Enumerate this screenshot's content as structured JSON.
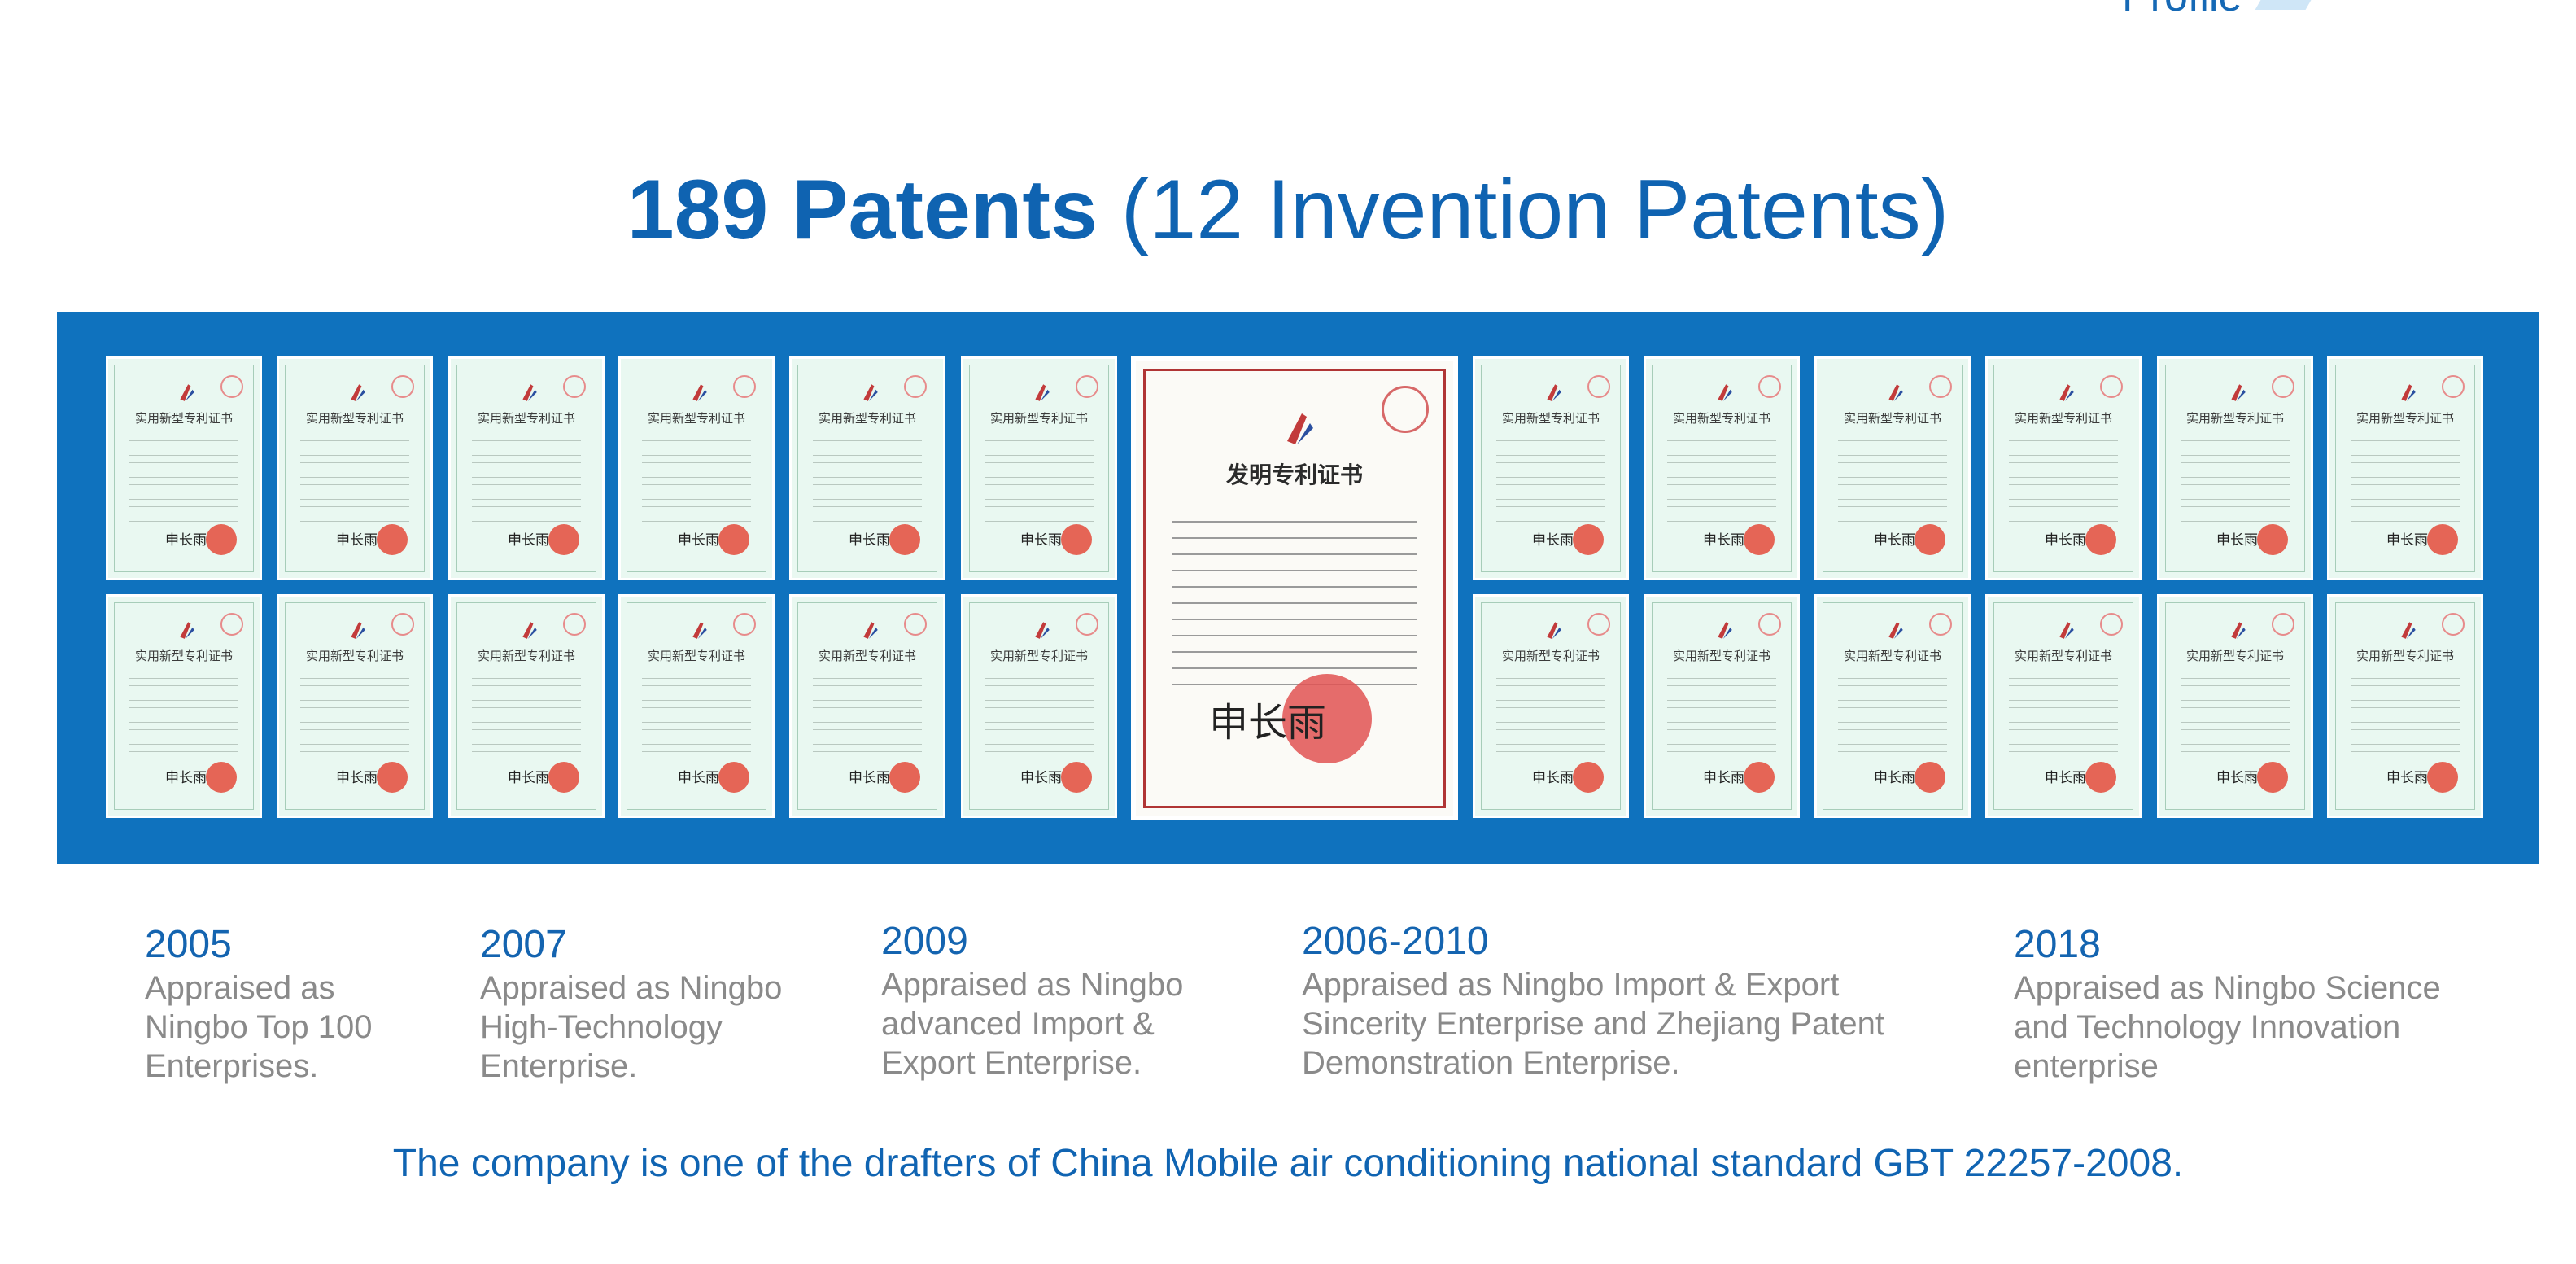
{
  "corner": {
    "text": "Profile"
  },
  "title": {
    "bold": "189 Patents",
    "normal": " (12 Invention Patents)"
  },
  "certificates": {
    "small_header": "实用新型专利证书",
    "small_sign": "申长雨",
    "big_header": "发明专利证书",
    "big_sign": "申长雨"
  },
  "milestones": [
    {
      "year": "2005",
      "lines": [
        "Appraised as",
        "Ningbo Top 100",
        "Enterprises."
      ]
    },
    {
      "year": "2007",
      "lines": [
        "Appraised as Ningbo",
        "High-Technology",
        "Enterprise."
      ]
    },
    {
      "year": "2009",
      "lines": [
        "Appraised as Ningbo",
        "advanced Import &",
        "Export Enterprise."
      ]
    },
    {
      "year": "2006-2010",
      "lines": [
        "Appraised as  Ningbo Import & Export",
        "Sincerity Enterprise and Zhejiang Patent",
        "Demonstration Enterprise."
      ]
    },
    {
      "year": "2018",
      "lines": [
        "Appraised as Ningbo Science",
        "and Technology Innovation",
        "enterprise"
      ]
    }
  ],
  "footer": {
    "text": "The company is one of the drafters of China Mobile air conditioning national standard GBT 22257-2008."
  },
  "colors": {
    "banner": "#0f72be",
    "title": "#0f63b1",
    "grey_text": "#8a8a8a"
  }
}
